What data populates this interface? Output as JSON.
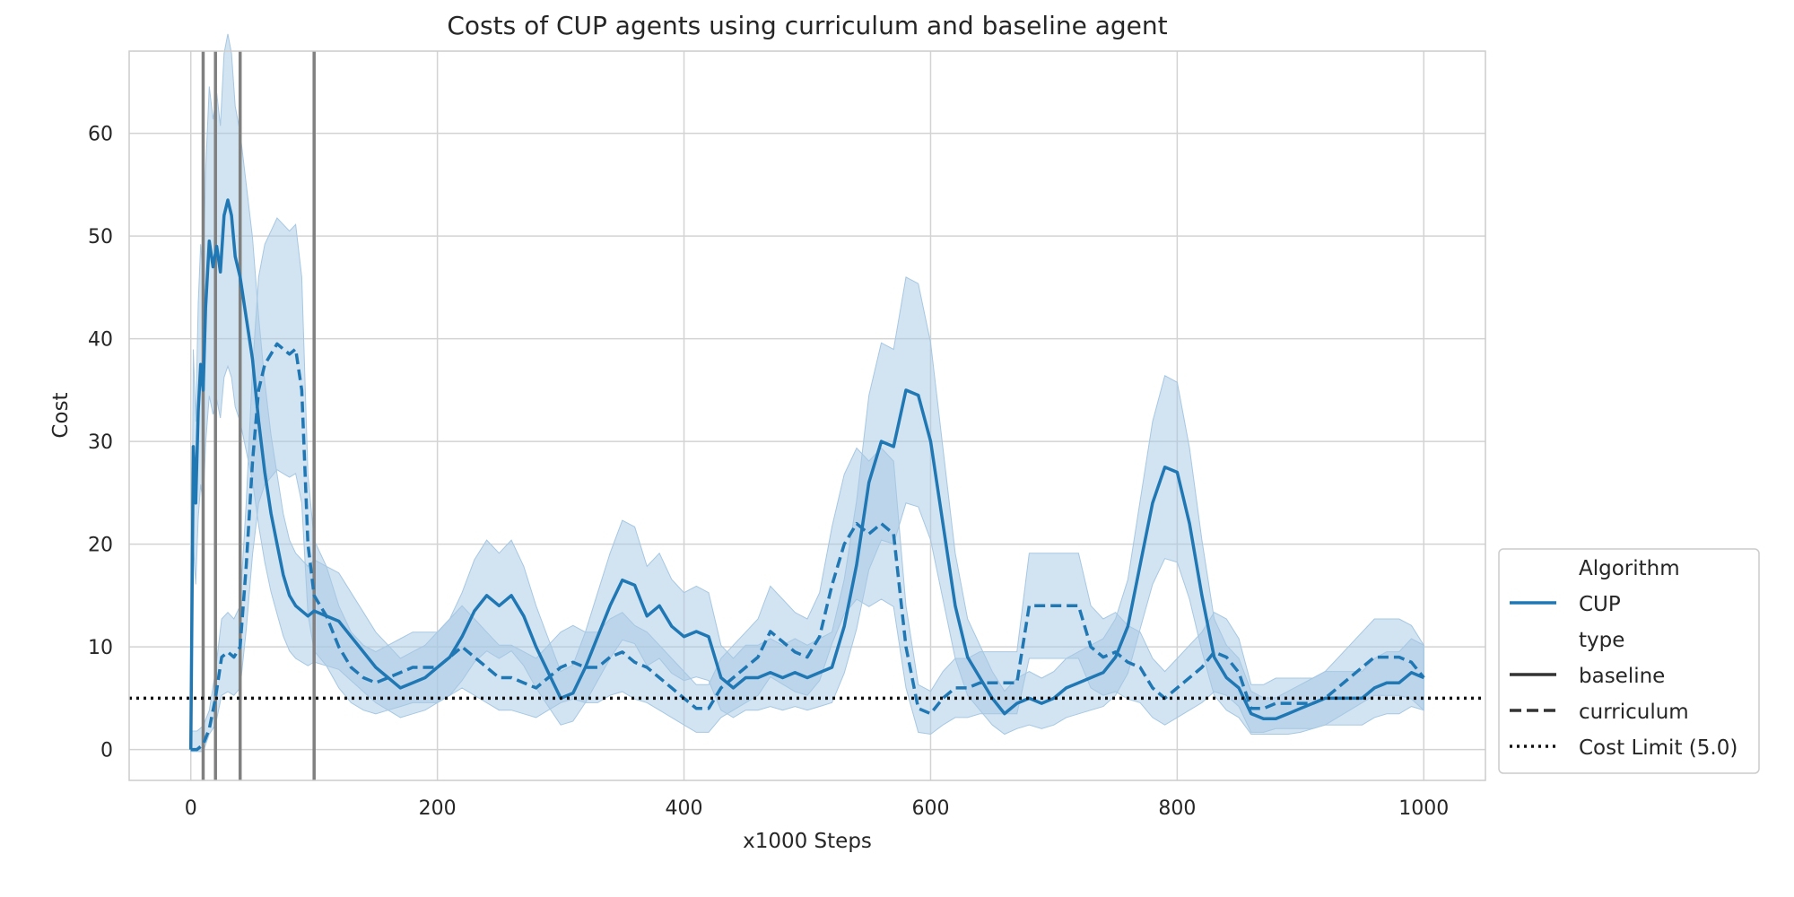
{
  "chart_data": {
    "type": "line",
    "title": "Costs of CUP agents using curriculum and baseline agent",
    "xlabel": "x1000 Steps",
    "ylabel": "Cost",
    "xlim": [
      -50,
      1050
    ],
    "ylim": [
      -3,
      68
    ],
    "xticks": [
      0,
      200,
      400,
      600,
      800,
      1000
    ],
    "yticks": [
      0,
      10,
      20,
      30,
      40,
      50,
      60
    ],
    "grid": true,
    "legend_position": "lower-right outside",
    "colors": {
      "series": "#1f77b4",
      "band": "#a6c8e3",
      "vline": "#808080",
      "limit": "#111111",
      "grid": "#d3d3d3",
      "legend_line": "#333333"
    },
    "vertical_lines": [
      10,
      20,
      40,
      100
    ],
    "cost_limit": 5.0,
    "legend": {
      "hue_title": "Algorithm",
      "hue_entries": [
        "CUP"
      ],
      "style_title": "type",
      "style_entries": [
        "baseline",
        "curriculum"
      ],
      "limit_entry": "Cost Limit (5.0)"
    },
    "series": [
      {
        "name": "baseline",
        "style": "solid",
        "x": [
          0,
          2,
          4,
          6,
          8,
          10,
          12,
          15,
          18,
          21,
          24,
          27,
          30,
          33,
          36,
          40,
          45,
          50,
          55,
          60,
          65,
          70,
          75,
          80,
          85,
          90,
          95,
          100,
          110,
          120,
          130,
          140,
          150,
          160,
          170,
          180,
          190,
          200,
          210,
          220,
          230,
          240,
          250,
          260,
          270,
          280,
          290,
          300,
          310,
          320,
          330,
          340,
          350,
          360,
          370,
          380,
          390,
          400,
          410,
          420,
          430,
          440,
          450,
          460,
          470,
          480,
          490,
          500,
          510,
          520,
          530,
          540,
          550,
          560,
          570,
          580,
          590,
          600,
          610,
          620,
          630,
          640,
          650,
          660,
          670,
          680,
          690,
          700,
          710,
          720,
          730,
          740,
          750,
          760,
          770,
          780,
          790,
          800,
          810,
          820,
          830,
          840,
          850,
          860,
          870,
          880,
          890,
          900,
          910,
          920,
          930,
          940,
          950,
          960,
          970,
          980,
          990,
          1000
        ],
        "y": [
          0,
          29.5,
          24,
          33,
          37.5,
          35,
          43,
          49.5,
          47,
          49,
          46.5,
          52,
          53.5,
          52,
          48,
          46,
          42,
          38,
          32,
          27,
          23,
          20,
          17,
          15,
          14,
          13.5,
          13,
          13.5,
          13,
          12.5,
          11,
          9.5,
          8,
          7,
          6,
          6.5,
          7,
          8,
          9,
          11,
          13.5,
          15,
          14,
          15,
          13,
          10,
          7.5,
          5,
          5.5,
          8,
          11,
          14,
          16.5,
          16,
          13,
          14,
          12,
          11,
          11.5,
          11,
          7,
          6,
          7,
          7,
          7.5,
          7,
          7.5,
          7,
          7.5,
          8,
          12,
          18,
          26,
          30,
          29.5,
          35,
          34.5,
          30,
          22,
          14,
          9,
          7,
          5,
          3.5,
          4.5,
          5,
          4.5,
          5,
          6,
          6.5,
          7,
          7.5,
          9,
          12,
          18,
          24,
          27.5,
          27,
          22,
          15,
          9,
          7,
          6,
          3.5,
          3,
          3,
          3.5,
          4,
          4.5,
          5,
          5,
          5,
          5,
          6,
          6.5,
          6.5,
          7.5,
          7
        ]
      },
      {
        "name": "curriculum",
        "style": "dashed",
        "x": [
          0,
          5,
          10,
          15,
          20,
          25,
          30,
          35,
          40,
          45,
          50,
          55,
          60,
          65,
          70,
          75,
          80,
          85,
          90,
          95,
          100,
          110,
          120,
          130,
          140,
          150,
          160,
          170,
          180,
          190,
          200,
          210,
          220,
          230,
          240,
          250,
          260,
          270,
          280,
          290,
          300,
          310,
          320,
          330,
          340,
          350,
          360,
          370,
          380,
          390,
          400,
          410,
          420,
          430,
          440,
          450,
          460,
          470,
          480,
          490,
          500,
          510,
          520,
          530,
          540,
          550,
          560,
          570,
          580,
          590,
          600,
          610,
          620,
          630,
          640,
          650,
          660,
          670,
          680,
          690,
          700,
          710,
          720,
          730,
          740,
          750,
          760,
          770,
          780,
          790,
          800,
          810,
          820,
          830,
          840,
          850,
          860,
          870,
          880,
          890,
          900,
          910,
          920,
          930,
          940,
          950,
          960,
          970,
          980,
          990,
          1000
        ],
        "y": [
          0,
          0,
          0.5,
          2,
          5,
          9,
          9.5,
          9,
          10,
          18,
          28,
          35,
          37.5,
          38.5,
          39.5,
          39,
          38.5,
          39,
          35,
          20,
          15,
          13,
          10,
          8,
          7,
          6.5,
          7,
          7.5,
          8,
          8,
          8,
          9,
          10,
          9,
          8,
          7,
          7,
          6.5,
          6,
          7,
          8,
          8.5,
          8,
          8,
          9,
          9.5,
          8.5,
          8,
          7,
          6,
          5,
          4,
          4,
          6,
          7,
          8,
          9,
          11.5,
          10.5,
          9.5,
          9,
          11,
          16,
          20,
          22,
          21,
          22,
          21,
          10,
          4,
          3.5,
          5,
          6,
          6,
          6.5,
          6.5,
          6.5,
          6.5,
          14,
          14,
          14,
          14,
          14,
          10,
          9,
          9.5,
          8.5,
          8,
          6,
          5,
          6,
          7,
          8,
          9.5,
          9,
          7.5,
          4,
          4,
          4.5,
          4.5,
          4.5,
          4.5,
          5,
          6,
          7,
          8,
          9,
          9,
          9,
          8.5,
          7
        ]
      }
    ]
  }
}
